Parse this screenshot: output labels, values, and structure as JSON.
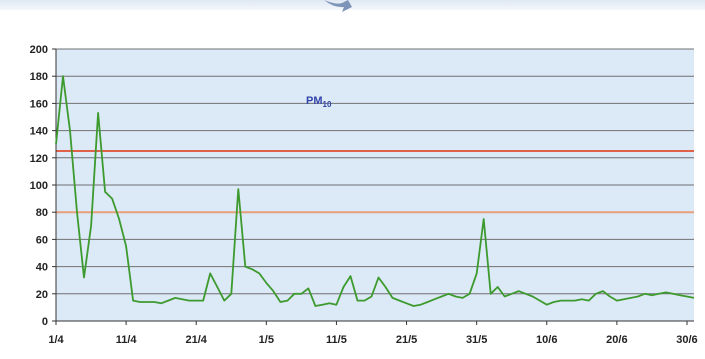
{
  "chart_data": {
    "type": "line",
    "title": "",
    "xlabel": "",
    "ylabel": "",
    "ylim": [
      0,
      200
    ],
    "yticks": [
      0,
      20,
      40,
      60,
      80,
      100,
      120,
      140,
      160,
      180,
      200
    ],
    "ytick_labels": [
      "0",
      "20",
      "40",
      "60",
      "80",
      "100",
      "120",
      "140",
      "160",
      "180",
      "200"
    ],
    "x_range_days": [
      1,
      92
    ],
    "xtick_days": [
      1,
      11,
      21,
      31,
      41,
      51,
      61,
      71,
      81,
      91
    ],
    "xtick_labels": [
      "1/4",
      "11/4",
      "21/4",
      "1/5",
      "11/5",
      "21/5",
      "31/5",
      "10/6",
      "20/6",
      "30/6"
    ],
    "annotation": "PM10",
    "reference_lines": [
      {
        "value": 125,
        "color": "#e0604a"
      },
      {
        "value": 80,
        "color": "#e8a07a"
      }
    ],
    "grid": true,
    "colors": {
      "line": "#3d9a2e",
      "plot_bg": "#dce9f6",
      "gridline": "#707070",
      "annotation": "#3344aa"
    },
    "series": [
      {
        "x": [
          1,
          2,
          3,
          4,
          5,
          6,
          7,
          8,
          9,
          10,
          11,
          12,
          13,
          14,
          15,
          16,
          17,
          18,
          19,
          20,
          21,
          22,
          23,
          24,
          25,
          26,
          27,
          28,
          29,
          30,
          31,
          32,
          33,
          34,
          35,
          36,
          37,
          38,
          39,
          40,
          41,
          42,
          43,
          44,
          45,
          46,
          47,
          48,
          49,
          50,
          51,
          52,
          53,
          54,
          55,
          56,
          57,
          58,
          59,
          60,
          61,
          62,
          63,
          64,
          65,
          66,
          67,
          68,
          69,
          70,
          71,
          72,
          73,
          74,
          75,
          76,
          77,
          78,
          79,
          80,
          81,
          82,
          83,
          84,
          85,
          86,
          87,
          88,
          89,
          90,
          91,
          92
        ],
        "values": [
          130,
          180,
          140,
          80,
          32,
          70,
          153,
          95,
          90,
          75,
          55,
          15,
          14,
          14,
          14,
          13,
          15,
          17,
          16,
          15,
          15,
          15,
          35,
          25,
          15,
          20,
          97,
          40,
          38,
          35,
          28,
          22,
          14,
          15,
          20,
          20,
          24,
          11,
          12,
          13,
          12,
          25,
          33,
          15,
          15,
          18,
          32,
          25,
          17,
          15,
          13,
          11,
          12,
          14,
          16,
          18,
          20,
          18,
          17,
          20,
          35,
          75,
          20,
          25,
          18,
          20,
          22,
          20,
          18,
          15,
          12,
          14,
          15,
          15,
          15,
          16,
          15,
          20,
          22,
          18,
          15,
          16,
          17,
          18,
          20,
          19,
          20,
          21,
          20,
          19,
          18,
          17
        ]
      }
    ]
  }
}
